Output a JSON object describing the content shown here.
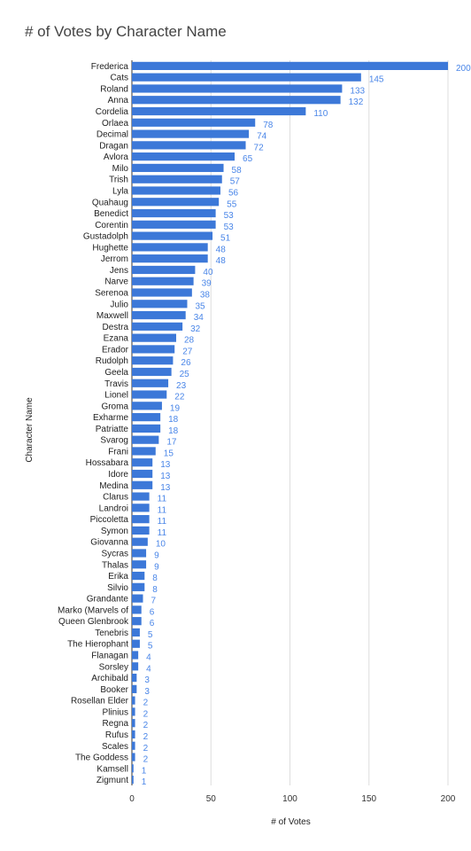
{
  "chart_data": {
    "type": "bar",
    "orientation": "horizontal",
    "title": "# of Votes by Character Name",
    "xlabel": "# of Votes",
    "ylabel": "Character Name",
    "xlim": [
      0,
      200
    ],
    "xticks": [
      0,
      50,
      100,
      150,
      200
    ],
    "grid": true,
    "legend": "none",
    "bar_color": "#3c78d8",
    "label_color": "#4a86e8",
    "categories": [
      "Frederica",
      "Cats",
      "Roland",
      "Anna",
      "Cordelia",
      "Orlaea",
      "Decimal",
      "Dragan",
      "Avlora",
      "Milo",
      "Trish",
      "Lyla",
      "Quahaug",
      "Benedict",
      "Corentin",
      "Gustadolph",
      "Hughette",
      "Jerrom",
      "Jens",
      "Narve",
      "Serenoa",
      "Julio",
      "Maxwell",
      "Destra",
      "Ezana",
      "Erador",
      "Rudolph",
      "Geela",
      "Travis",
      "Lionel",
      "Groma",
      "Exharme",
      "Patriatte",
      "Svarog",
      "Frani",
      "Hossabara",
      "Idore",
      "Medina",
      "Clarus",
      "Landroi",
      "Piccoletta",
      "Symon",
      "Giovanna",
      "Sycras",
      "Thalas",
      "Erika",
      "Silvio",
      "Grandante",
      "Marko (Marvels of",
      "Queen Glenbrook",
      "Tenebris",
      "The Hierophant",
      "Flanagan",
      "Sorsley",
      "Archibald",
      "Booker",
      "Rosellan Elder",
      "Plinius",
      "Regna",
      "Rufus",
      "Scales",
      "The Goddess",
      "Kamsell",
      "Zigmunt"
    ],
    "values": [
      200,
      145,
      133,
      132,
      110,
      78,
      74,
      72,
      65,
      58,
      57,
      56,
      55,
      53,
      53,
      51,
      48,
      48,
      40,
      39,
      38,
      35,
      34,
      32,
      28,
      27,
      26,
      25,
      23,
      22,
      19,
      18,
      18,
      17,
      15,
      13,
      13,
      13,
      11,
      11,
      11,
      11,
      10,
      9,
      9,
      8,
      8,
      7,
      6,
      6,
      5,
      5,
      4,
      4,
      3,
      3,
      2,
      2,
      2,
      2,
      2,
      2,
      1,
      1
    ]
  }
}
